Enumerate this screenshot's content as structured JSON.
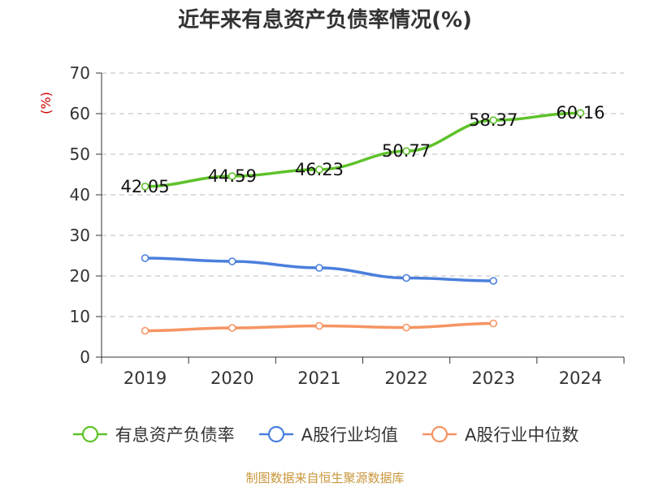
{
  "title": "近年来有息资产负债率情况(%)",
  "source": "制图数据来自恒生聚源数据库",
  "chart_data": {
    "type": "line",
    "title": "近年来有息资产负债率情况(%)",
    "ylabel": "(%)",
    "xlabel": "",
    "categories": [
      "2019",
      "2020",
      "2021",
      "2022",
      "2023",
      "2024"
    ],
    "ylim": [
      0,
      70
    ],
    "yticks": [
      0,
      10,
      20,
      30,
      40,
      50,
      60,
      70
    ],
    "grid": true,
    "legend_position": "bottom",
    "series": [
      {
        "name": "有息资产负债率",
        "color": "#5ec22a",
        "values": [
          42.05,
          44.59,
          46.23,
          50.77,
          58.37,
          60.16
        ],
        "labels": [
          "42.05",
          "44.59",
          "46.23",
          "50.77",
          "58.37",
          "60.16"
        ]
      },
      {
        "name": "A股行业均值",
        "color": "#4a7fdc",
        "values": [
          24.4,
          23.6,
          22.0,
          19.5,
          18.8,
          null
        ]
      },
      {
        "name": "A股行业中位数",
        "color": "#f59463",
        "values": [
          6.5,
          7.2,
          7.7,
          7.3,
          8.3,
          null
        ]
      }
    ]
  }
}
